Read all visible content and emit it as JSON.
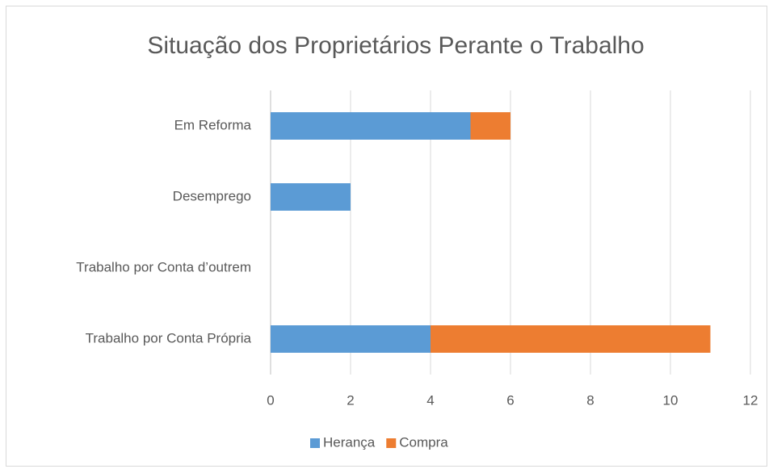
{
  "chart_data": {
    "type": "bar",
    "orientation": "horizontal",
    "stacked": true,
    "title": "Situação dos Proprietários Perante o Trabalho",
    "categories": [
      "Em Reforma",
      "Desemprego",
      "Trabalho por Conta d’outrem",
      "Trabalho por Conta Própria"
    ],
    "series": [
      {
        "name": "Herança",
        "color": "#5b9bd5",
        "values": [
          5,
          2,
          0,
          4
        ]
      },
      {
        "name": "Compra",
        "color": "#ed7d31",
        "values": [
          1,
          0,
          0,
          7
        ]
      }
    ],
    "xlim": [
      0,
      12
    ],
    "xticks": [
      0,
      2,
      4,
      6,
      8,
      10,
      12
    ],
    "grid": true,
    "legend": "bottom"
  }
}
